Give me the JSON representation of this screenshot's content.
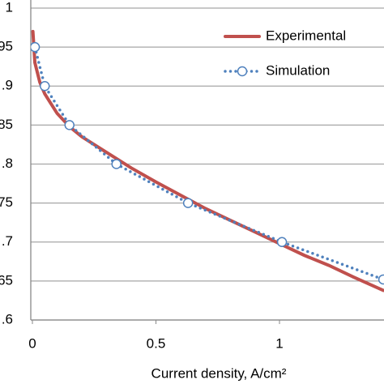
{
  "chart_data": {
    "type": "line",
    "xlabel": "Current density, A/cm²",
    "xlim": [
      0,
      1.423
    ],
    "xticks": [
      0,
      0.5,
      1
    ],
    "ylim": [
      0.6,
      1
    ],
    "yticks": [
      {
        "value": 0.6,
        "label": ".6"
      },
      {
        "value": 0.65,
        "label": "65"
      },
      {
        "value": 0.7,
        "label": ".7"
      },
      {
        "value": 0.75,
        "label": "75"
      },
      {
        "value": 0.8,
        "label": ".8"
      },
      {
        "value": 0.85,
        "label": "85"
      },
      {
        "value": 0.9,
        "label": ".9"
      },
      {
        "value": 0.95,
        "label": "95"
      },
      1
    ],
    "grid": true,
    "legend": "upper right",
    "series": [
      {
        "name": "Experimental",
        "color": "#c0504d",
        "style": "solid",
        "x": [
          0.002,
          0.01,
          0.03,
          0.05,
          0.1,
          0.15,
          0.2,
          0.3,
          0.4,
          0.5,
          0.6,
          0.7,
          0.8,
          0.9,
          1.0,
          1.1,
          1.2,
          1.3,
          1.42
        ],
        "values": [
          0.97,
          0.93,
          0.905,
          0.89,
          0.865,
          0.848,
          0.835,
          0.815,
          0.795,
          0.777,
          0.76,
          0.743,
          0.728,
          0.713,
          0.698,
          0.683,
          0.67,
          0.655,
          0.638
        ]
      },
      {
        "name": "Simulation",
        "color": "#4f81bd",
        "style": "dotted-markers",
        "x": [
          0.01,
          0.05,
          0.15,
          0.34,
          0.63,
          1.01,
          1.42
        ],
        "values": [
          0.95,
          0.9,
          0.85,
          0.8,
          0.75,
          0.7,
          0.652
        ]
      }
    ]
  }
}
